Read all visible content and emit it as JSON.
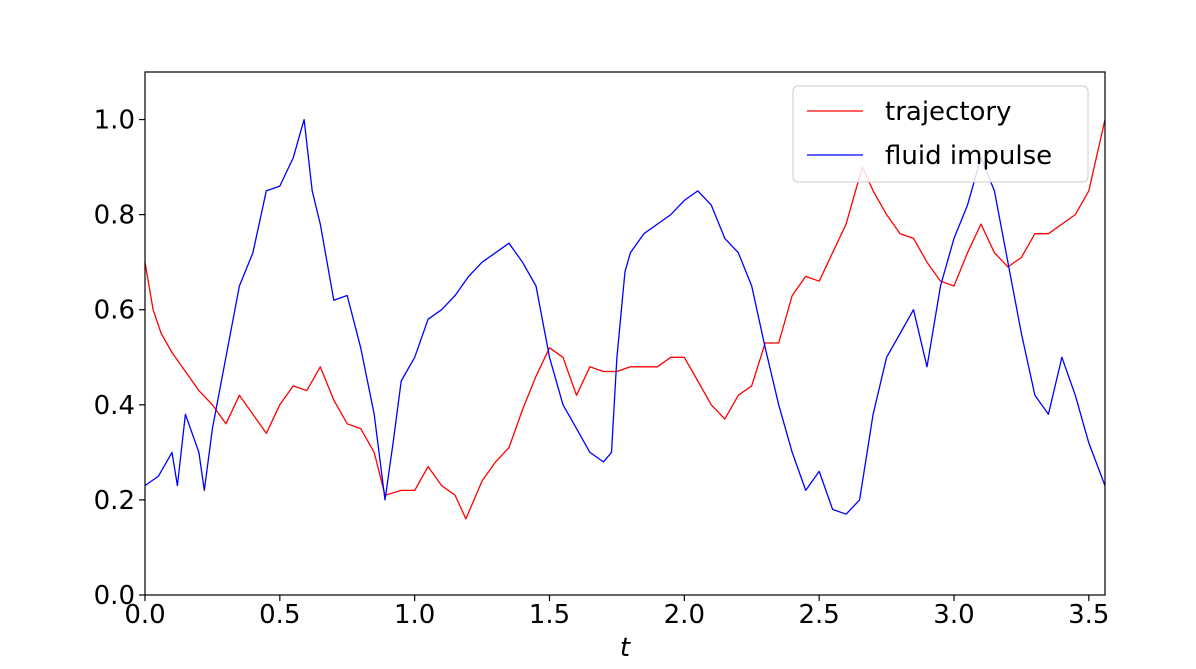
{
  "chart_data": {
    "type": "line",
    "title": "",
    "xlabel": "t",
    "ylabel": "",
    "xlim": [
      0.0,
      3.56
    ],
    "ylim": [
      0.0,
      1.1
    ],
    "x_ticks": [
      "0.0",
      "0.5",
      "1.0",
      "1.5",
      "2.0",
      "2.5",
      "3.0",
      "3.5"
    ],
    "y_ticks": [
      "0.0",
      "0.2",
      "0.4",
      "0.6",
      "0.8",
      "1.0"
    ],
    "grid": false,
    "legend_position": "top-right",
    "series": [
      {
        "name": "trajectory",
        "color": "#ff0000",
        "x": [
          0.0,
          0.03,
          0.06,
          0.1,
          0.15,
          0.2,
          0.25,
          0.3,
          0.35,
          0.4,
          0.45,
          0.5,
          0.55,
          0.6,
          0.65,
          0.7,
          0.75,
          0.8,
          0.85,
          0.89,
          0.95,
          1.0,
          1.05,
          1.1,
          1.15,
          1.19,
          1.25,
          1.3,
          1.35,
          1.4,
          1.45,
          1.5,
          1.55,
          1.6,
          1.65,
          1.7,
          1.75,
          1.8,
          1.85,
          1.9,
          1.95,
          2.0,
          2.05,
          2.1,
          2.15,
          2.2,
          2.25,
          2.3,
          2.35,
          2.4,
          2.45,
          2.5,
          2.55,
          2.6,
          2.66,
          2.7,
          2.75,
          2.8,
          2.85,
          2.9,
          2.95,
          3.0,
          3.05,
          3.1,
          3.15,
          3.2,
          3.25,
          3.3,
          3.35,
          3.4,
          3.45,
          3.5,
          3.56
        ],
        "y": [
          0.7,
          0.6,
          0.55,
          0.51,
          0.47,
          0.43,
          0.4,
          0.36,
          0.42,
          0.38,
          0.34,
          0.4,
          0.44,
          0.43,
          0.48,
          0.41,
          0.36,
          0.35,
          0.3,
          0.21,
          0.22,
          0.22,
          0.27,
          0.23,
          0.21,
          0.16,
          0.24,
          0.28,
          0.31,
          0.39,
          0.46,
          0.52,
          0.5,
          0.42,
          0.48,
          0.47,
          0.47,
          0.48,
          0.48,
          0.48,
          0.5,
          0.5,
          0.45,
          0.4,
          0.37,
          0.42,
          0.44,
          0.53,
          0.53,
          0.63,
          0.67,
          0.66,
          0.72,
          0.78,
          0.9,
          0.85,
          0.8,
          0.76,
          0.75,
          0.7,
          0.66,
          0.65,
          0.72,
          0.78,
          0.72,
          0.69,
          0.71,
          0.76,
          0.76,
          0.78,
          0.8,
          0.85,
          1.0
        ]
      },
      {
        "name": "fluid impulse",
        "color": "#0000ff",
        "x": [
          0.0,
          0.05,
          0.1,
          0.12,
          0.15,
          0.2,
          0.22,
          0.25,
          0.3,
          0.35,
          0.4,
          0.45,
          0.5,
          0.55,
          0.59,
          0.62,
          0.65,
          0.7,
          0.75,
          0.8,
          0.85,
          0.89,
          0.92,
          0.95,
          1.0,
          1.05,
          1.1,
          1.15,
          1.2,
          1.25,
          1.3,
          1.35,
          1.4,
          1.45,
          1.5,
          1.55,
          1.6,
          1.65,
          1.7,
          1.73,
          1.75,
          1.78,
          1.8,
          1.85,
          1.9,
          1.95,
          2.0,
          2.05,
          2.1,
          2.15,
          2.2,
          2.25,
          2.3,
          2.35,
          2.4,
          2.45,
          2.5,
          2.55,
          2.6,
          2.65,
          2.7,
          2.75,
          2.8,
          2.85,
          2.9,
          2.95,
          3.0,
          3.05,
          3.1,
          3.15,
          3.2,
          3.25,
          3.3,
          3.35,
          3.4,
          3.45,
          3.5,
          3.56
        ],
        "y": [
          0.23,
          0.25,
          0.3,
          0.23,
          0.38,
          0.3,
          0.22,
          0.35,
          0.5,
          0.65,
          0.72,
          0.85,
          0.86,
          0.92,
          1.0,
          0.85,
          0.78,
          0.62,
          0.63,
          0.52,
          0.38,
          0.2,
          0.32,
          0.45,
          0.5,
          0.58,
          0.6,
          0.63,
          0.67,
          0.7,
          0.72,
          0.74,
          0.7,
          0.65,
          0.5,
          0.4,
          0.35,
          0.3,
          0.28,
          0.3,
          0.5,
          0.68,
          0.72,
          0.76,
          0.78,
          0.8,
          0.83,
          0.85,
          0.82,
          0.75,
          0.72,
          0.65,
          0.52,
          0.4,
          0.3,
          0.22,
          0.26,
          0.18,
          0.17,
          0.2,
          0.38,
          0.5,
          0.55,
          0.6,
          0.48,
          0.65,
          0.75,
          0.82,
          0.92,
          0.85,
          0.7,
          0.55,
          0.42,
          0.38,
          0.5,
          0.42,
          0.32,
          0.23
        ]
      }
    ]
  }
}
